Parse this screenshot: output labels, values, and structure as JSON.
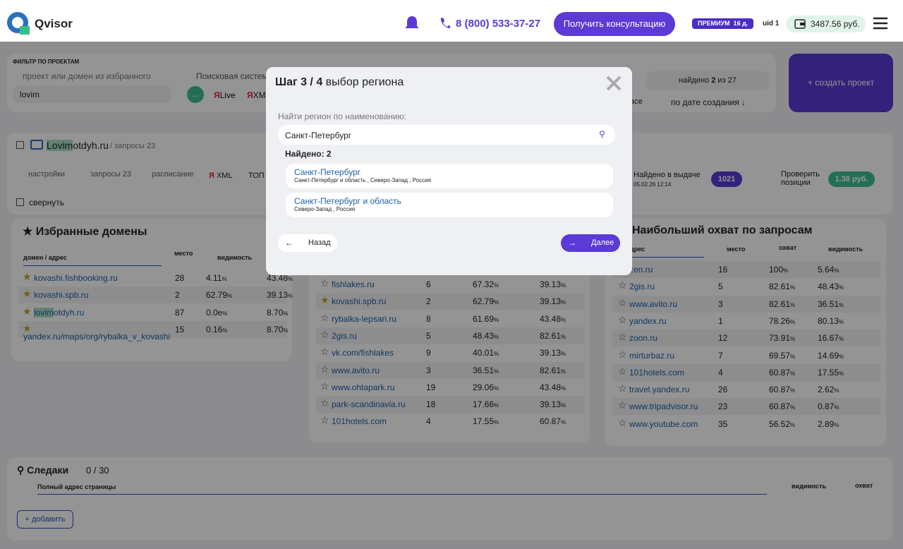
{
  "header": {
    "logo": "Qvisor",
    "phone": "8 (800) 533-37-27",
    "consult_button": "Получить консультацию",
    "premium": "ПРЕМИУМ",
    "premium_days": "16 д.",
    "uid": "uid 1",
    "balance": "3487.56 руб."
  },
  "filter": {
    "title": "ФИЛЬТР ПО ПРОЕКТАМ",
    "project_placeholder": "проект или домен из избранного",
    "project_value": "lovim",
    "engine_label": "Поисковая система",
    "chips": [
      "...",
      "Live",
      "XM"
    ],
    "partial_label": "асе",
    "found_prefix": "найдено",
    "found_count": "2",
    "found_total": "из 27",
    "sort": "по дате создания ↓",
    "create_project": "+ создать проект"
  },
  "project": {
    "highlight": "Lovim",
    "domain": "otdyh.ru",
    "queries": "/ запросы 23",
    "tabs": [
      "настройки",
      "запросы 23",
      "расписание",
      "XML",
      "ТОП"
    ],
    "found_label": "Найдено в выдаче",
    "found_date": "05.02.26 12:14",
    "found_count": "1021",
    "check_label": "Проверить позиции",
    "check_price": "1.38 руб.",
    "collapse": "свернуть"
  },
  "favorites": {
    "title": "Избранные домены",
    "columns": [
      "домен / адрес",
      "место",
      "видимость"
    ],
    "rows": [
      {
        "domain": "kovashi.fishbooking.ru",
        "place": 28,
        "visibility": "4.11%",
        "reach": "43.48%"
      },
      {
        "domain": "kovashi.spb.ru",
        "place": 2,
        "visibility": "62.79%",
        "reach": "39.13%"
      },
      {
        "domain": "lovimotdyh.ru",
        "place": 87,
        "visibility": "0.0e%",
        "reach": "8.70%"
      },
      {
        "domain": "yandex.ru/maps/org/rybalka_v_kovashi",
        "place": 15,
        "visibility": "0.16%",
        "reach": "8.70%"
      }
    ]
  },
  "competitors": {
    "rows": [
      {
        "domain": "fishlakes.ru",
        "place": 6,
        "visibility": "67.32%",
        "reach": "39.13%",
        "favorite": false
      },
      {
        "domain": "kovashi.spb.ru",
        "place": 2,
        "visibility": "62.79%",
        "reach": "39.13%",
        "favorite": true
      },
      {
        "domain": "rybalka-lepsari.ru",
        "place": 8,
        "visibility": "61.69%",
        "reach": "43.48%",
        "favorite": false
      },
      {
        "domain": "2gis.ru",
        "place": 5,
        "visibility": "48.43%",
        "reach": "82.61%",
        "favorite": false
      },
      {
        "domain": "vk.com/fishlakes",
        "place": 9,
        "visibility": "40.01%",
        "reach": "39.13%",
        "favorite": false
      },
      {
        "domain": "www.avito.ru",
        "place": 3,
        "visibility": "36.51%",
        "reach": "82.61%",
        "favorite": false
      },
      {
        "domain": "www.ohtapark.ru",
        "place": 19,
        "visibility": "29.06%",
        "reach": "43.48%",
        "favorite": false
      },
      {
        "domain": "park-scandinavia.ru",
        "place": 18,
        "visibility": "17.66%",
        "reach": "39.13%",
        "favorite": false
      },
      {
        "domain": "101hotels.com",
        "place": 4,
        "visibility": "17.55%",
        "reach": "60.87%",
        "favorite": false
      }
    ]
  },
  "reach": {
    "title": "Наибольший охват по запросам",
    "columns": [
      "ен / адрес",
      "место",
      "охват",
      "видимость"
    ],
    "rows": [
      {
        "domain": "zen.ru",
        "place": 16,
        "reach": "100%",
        "visibility": "5.64%"
      },
      {
        "domain": "2gis.ru",
        "place": 5,
        "reach": "82.61%",
        "visibility": "48.43%"
      },
      {
        "domain": "www.avito.ru",
        "place": 3,
        "reach": "82.61%",
        "visibility": "36.51%"
      },
      {
        "domain": "yandex.ru",
        "place": 1,
        "reach": "78.26%",
        "visibility": "80.13%"
      },
      {
        "domain": "zoon.ru",
        "place": 12,
        "reach": "73.91%",
        "visibility": "16.67%"
      },
      {
        "domain": "mirturbaz.ru",
        "place": 7,
        "reach": "69.57%",
        "visibility": "14.69%"
      },
      {
        "domain": "101hotels.com",
        "place": 4,
        "reach": "60.87%",
        "visibility": "17.55%"
      },
      {
        "domain": "travel.yandex.ru",
        "place": 26,
        "reach": "60.87%",
        "visibility": "2.62%"
      },
      {
        "domain": "www.tripadvisor.ru",
        "place": 23,
        "reach": "60.87%",
        "visibility": "0.87%"
      },
      {
        "domain": "www.youtube.com",
        "place": 35,
        "reach": "56.52%",
        "visibility": "2.89%"
      }
    ]
  },
  "tracks": {
    "title": "Следаки",
    "count": "0 / 30",
    "columns": [
      "Полный адрес страницы",
      "видимость",
      "охват"
    ],
    "add": "+ добавить"
  },
  "modal": {
    "step": "Шаг 3 / 4",
    "title": "выбор региона",
    "search_label": "Найти регион по наименованию:",
    "search_value": "Санкт-Петербург",
    "found": "Найдено: 2",
    "results": [
      {
        "name": "Санкт-Петербург",
        "path": "Санкт-Петербург и область , Северо-Запад , Россия"
      },
      {
        "name": "Санкт-Петербург и область",
        "path": "Северо-Запад , Россия"
      }
    ],
    "back": "Назад",
    "next": "Далее"
  }
}
